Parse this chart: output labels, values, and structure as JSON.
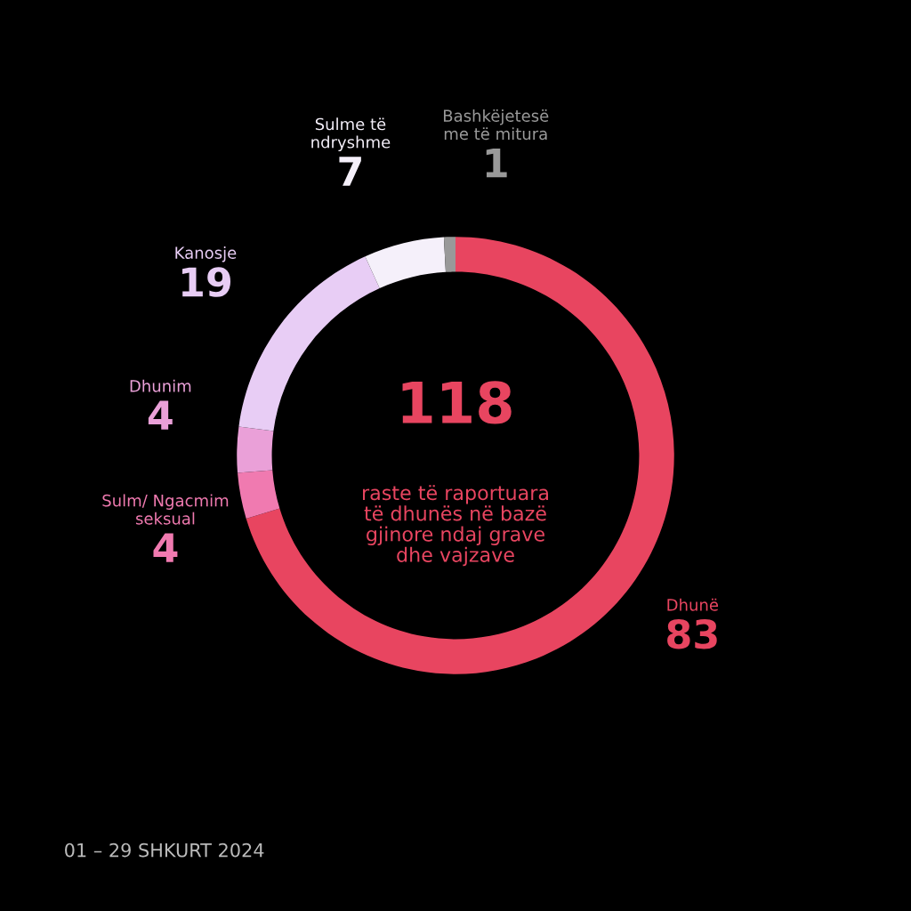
{
  "chart_data": {
    "type": "donut",
    "categories": [
      "Dhunë",
      "Sulm/ Ngacmim\nseksual",
      "Dhunim",
      "Kanosje",
      "Sulme të\nndryshme",
      "Bashkëjetesë\nme të mitura"
    ],
    "values": [
      83,
      4,
      4,
      19,
      7,
      1
    ],
    "colors": [
      "#e84560",
      "#f07ab0",
      "#eaa0d8",
      "#e8cdf5",
      "#f5f0fa",
      "#999999"
    ],
    "data_labels": true,
    "legend": false,
    "annotations": [
      "118",
      "raste të raportuara\ntë dhunës në bazë\ngjinore ndaj grave\ndhe vajzave",
      "01 – 29 SHKURT 2024"
    ]
  }
}
